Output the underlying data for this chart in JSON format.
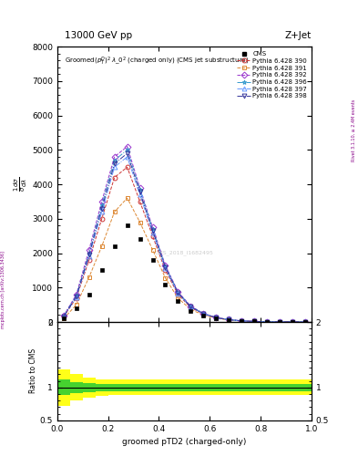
{
  "title_left": "13000 GeV pp",
  "title_right": "Z+Jet",
  "plot_title": "Groomed$(p_{T}^{D})^{2}\\,\\lambda\\_0^{2}$ (charged only) (CMS jet substructure)",
  "right_label": "Rivet 3.1.10, ≥ 2.4M events",
  "mcplots_label": "mcplots.cern.ch [arXiv:1306.3436]",
  "cms_watermark": "CMS_2018_I1682495",
  "xlabel": "groomed pTD2 (charged-only)",
  "xlim": [
    0,
    1
  ],
  "main_ylim": [
    0,
    8000
  ],
  "ratio_ylim": [
    0.5,
    2.0
  ],
  "x_data": [
    0.025,
    0.075,
    0.125,
    0.175,
    0.225,
    0.275,
    0.325,
    0.375,
    0.425,
    0.475,
    0.525,
    0.575,
    0.625,
    0.675,
    0.725,
    0.775,
    0.825,
    0.875,
    0.925,
    0.975
  ],
  "cms_y": [
    100,
    400,
    800,
    1500,
    2200,
    2800,
    2400,
    1800,
    1100,
    600,
    320,
    180,
    100,
    55,
    30,
    14,
    7,
    3,
    1.2,
    0.4
  ],
  "pythia_390_y": [
    150,
    700,
    1800,
    3000,
    4200,
    4500,
    3500,
    2500,
    1500,
    800,
    420,
    230,
    120,
    65,
    32,
    15,
    7,
    3,
    1.2,
    0.4
  ],
  "pythia_391_y": [
    100,
    500,
    1300,
    2200,
    3200,
    3600,
    2900,
    2100,
    1280,
    690,
    365,
    200,
    105,
    57,
    28,
    13,
    6.5,
    2.8,
    1.1,
    0.35
  ],
  "pythia_392_y": [
    180,
    800,
    2100,
    3500,
    4800,
    5100,
    3900,
    2750,
    1650,
    880,
    460,
    250,
    130,
    70,
    35,
    16,
    7.5,
    3.2,
    1.3,
    0.45
  ],
  "pythia_396_y": [
    170,
    760,
    2000,
    3400,
    4700,
    5000,
    3850,
    2700,
    1620,
    860,
    450,
    245,
    128,
    68,
    34,
    15.5,
    7.3,
    3.1,
    1.25,
    0.43
  ],
  "pythia_397_y": [
    160,
    720,
    1900,
    3200,
    4500,
    4800,
    3700,
    2600,
    1560,
    830,
    435,
    237,
    124,
    66,
    33,
    15,
    7.1,
    3.0,
    1.2,
    0.41
  ],
  "pythia_398_y": [
    165,
    740,
    1950,
    3300,
    4600,
    4900,
    3780,
    2650,
    1590,
    845,
    442,
    241,
    126,
    67,
    33.5,
    15.3,
    7.2,
    3.05,
    1.22,
    0.42
  ],
  "cms_color": "#000000",
  "py390_color": "#cc3333",
  "py391_color": "#dd8833",
  "py392_color": "#9933cc",
  "py396_color": "#3399cc",
  "py397_color": "#6699ff",
  "py398_color": "#333399",
  "green_band_upper": [
    1.12,
    1.08,
    1.07,
    1.06,
    1.06,
    1.06,
    1.06,
    1.06,
    1.06,
    1.06,
    1.06,
    1.06,
    1.06,
    1.06,
    1.06,
    1.06,
    1.06,
    1.06,
    1.06,
    1.06
  ],
  "green_band_lower": [
    0.88,
    0.92,
    0.93,
    0.94,
    0.94,
    0.94,
    0.94,
    0.94,
    0.94,
    0.94,
    0.94,
    0.94,
    0.94,
    0.94,
    0.94,
    0.94,
    0.94,
    0.94,
    0.94,
    0.94
  ],
  "yellow_band_upper": [
    1.28,
    1.2,
    1.15,
    1.13,
    1.12,
    1.12,
    1.12,
    1.12,
    1.12,
    1.12,
    1.12,
    1.12,
    1.12,
    1.12,
    1.12,
    1.12,
    1.12,
    1.12,
    1.12,
    1.12
  ],
  "yellow_band_lower": [
    0.72,
    0.8,
    0.85,
    0.87,
    0.88,
    0.88,
    0.88,
    0.88,
    0.88,
    0.88,
    0.88,
    0.88,
    0.88,
    0.88,
    0.88,
    0.88,
    0.88,
    0.88,
    0.88,
    0.88
  ]
}
